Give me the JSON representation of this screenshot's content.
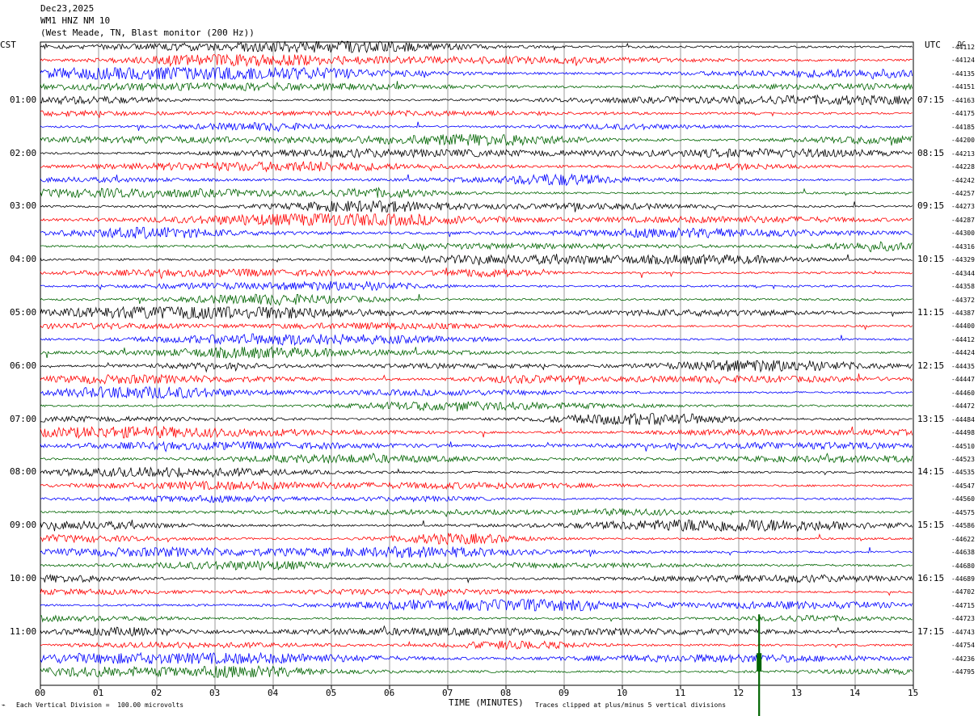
{
  "header": {
    "date": "Dec23,2025",
    "station": "WM1 HNZ NM 10",
    "location": "(West Meade, TN, Blast monitor (200 Hz))"
  },
  "left_timezone": "CST",
  "right_timezone": "UTC",
  "dc_label": "DC",
  "footer": {
    "xlabel": "TIME (MINUTES)",
    "scale_note": "Each Vertical Division =  100.00 microvolts",
    "clip_note": "Traces clipped at plus/minus 5 vertical divisions"
  },
  "colors": {
    "trace_cycle": [
      "#000000",
      "#ff0000",
      "#0000ff",
      "#006400"
    ],
    "grid": "#808080"
  },
  "chart_data": {
    "type": "line",
    "title": "",
    "xlabel": "TIME (MINUTES)",
    "ylabel": "",
    "xlim": [
      0,
      15
    ],
    "x_ticks": [
      "00",
      "01",
      "02",
      "03",
      "04",
      "05",
      "06",
      "07",
      "08",
      "09",
      "10",
      "11",
      "12",
      "13",
      "14",
      "15"
    ],
    "left_hour_labels": [
      "01:00",
      "02:00",
      "03:00",
      "04:00",
      "05:00",
      "06:00",
      "07:00",
      "08:00",
      "09:00",
      "10:00",
      "11:00"
    ],
    "right_hour_labels": [
      "07:15",
      "08:15",
      "09:15",
      "10:15",
      "11:15",
      "12:15",
      "13:15",
      "14:15",
      "15:15",
      "16:15",
      "17:15"
    ],
    "right_dc_values": [
      "-44112",
      "-44124",
      "-44135",
      "-44151",
      "-44163",
      "-44175",
      "-44185",
      "-44200",
      "-44213",
      "-44228",
      "-44242",
      "-44257",
      "-44273",
      "-44287",
      "-44300",
      "-44316",
      "-44329",
      "-44344",
      "-44358",
      "-44372",
      "-44387",
      "-44400",
      "-44412",
      "-44424",
      "-44435",
      "-44447",
      "-44460",
      "-44472",
      "-44484",
      "-44498",
      "-44510",
      "-44523",
      "-44535",
      "-44547",
      "-44560",
      "-44575",
      "-44586",
      "-44622",
      "-44638",
      "-44680",
      "-44689",
      "-44702",
      "-44715",
      "-44723",
      "-44743",
      "-44754",
      "-44236",
      "-44795"
    ],
    "series_color_cycle": [
      "black",
      "red",
      "blue",
      "green"
    ],
    "trace_count": 48,
    "minutes_per_trace": 15,
    "event": {
      "trace_index": 45,
      "minute": 12.35,
      "clipped": true
    }
  }
}
